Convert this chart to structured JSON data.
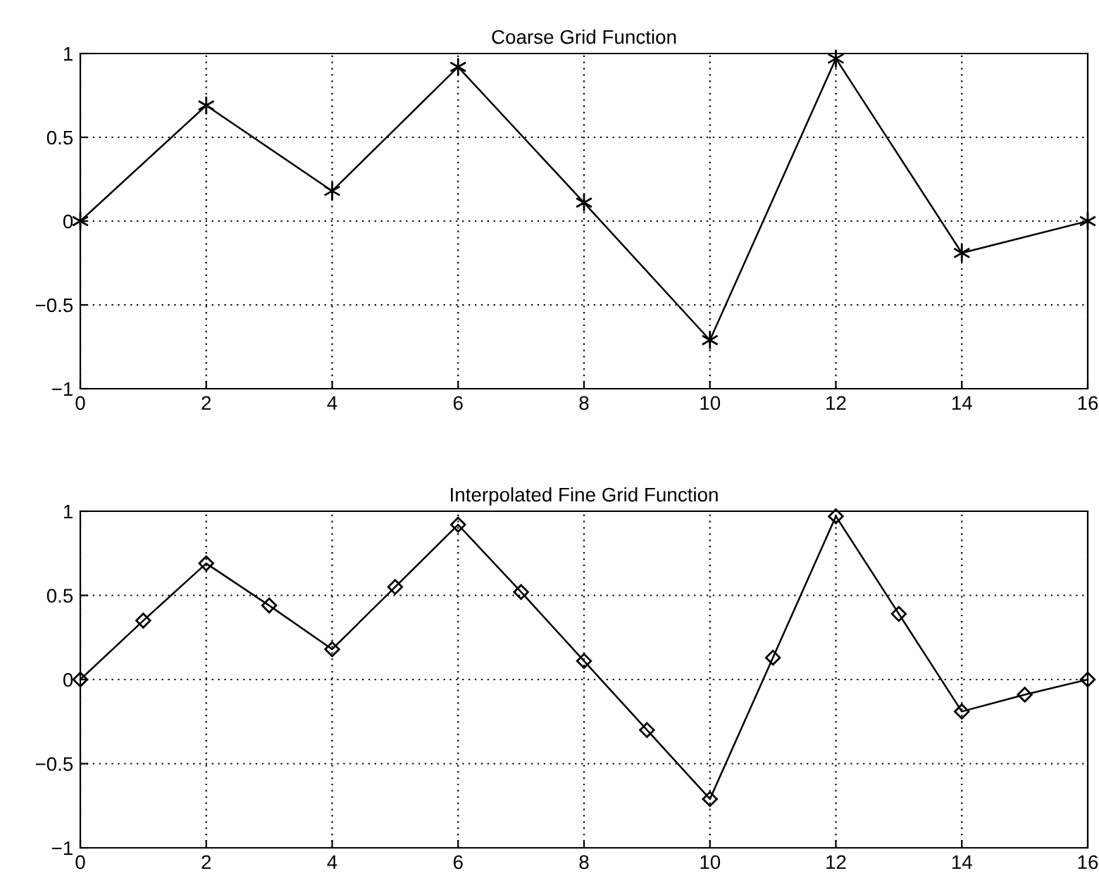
{
  "chart_data": [
    {
      "type": "line",
      "title": "Coarse Grid Function",
      "x": [
        0,
        2,
        4,
        6,
        8,
        10,
        12,
        14,
        16
      ],
      "series": [
        {
          "color": "#000000",
          "values": [
            0,
            0.69,
            0.18,
            0.92,
            0.11,
            -0.71,
            0.97,
            -0.19,
            0
          ]
        }
      ],
      "xlim": [
        0,
        16
      ],
      "ylim": [
        -1,
        1
      ],
      "xticks": [
        0,
        2,
        4,
        6,
        8,
        10,
        12,
        14,
        16
      ],
      "yticks": [
        -1,
        -0.5,
        0,
        0.5,
        1
      ],
      "grid": true,
      "marker": "cross",
      "line_style": "solid"
    },
    {
      "type": "line",
      "title": "Interpolated Fine Grid Function",
      "x": [
        0,
        1,
        2,
        3,
        4,
        5,
        6,
        7,
        8,
        9,
        10,
        11,
        12,
        13,
        14,
        15,
        16
      ],
      "series": [
        {
          "color": "#000000",
          "values": [
            0,
            0.35,
            0.69,
            0.44,
            0.18,
            0.55,
            0.92,
            0.52,
            0.11,
            -0.3,
            -0.71,
            0.13,
            0.97,
            0.39,
            -0.19,
            -0.09,
            0
          ]
        }
      ],
      "xlim": [
        0,
        16
      ],
      "ylim": [
        -1,
        1
      ],
      "xticks": [
        0,
        2,
        4,
        6,
        8,
        10,
        12,
        14,
        16
      ],
      "yticks": [
        -1,
        -0.5,
        0,
        0.5,
        1
      ],
      "grid": true,
      "marker": "diamond",
      "line_style": "solid"
    }
  ]
}
